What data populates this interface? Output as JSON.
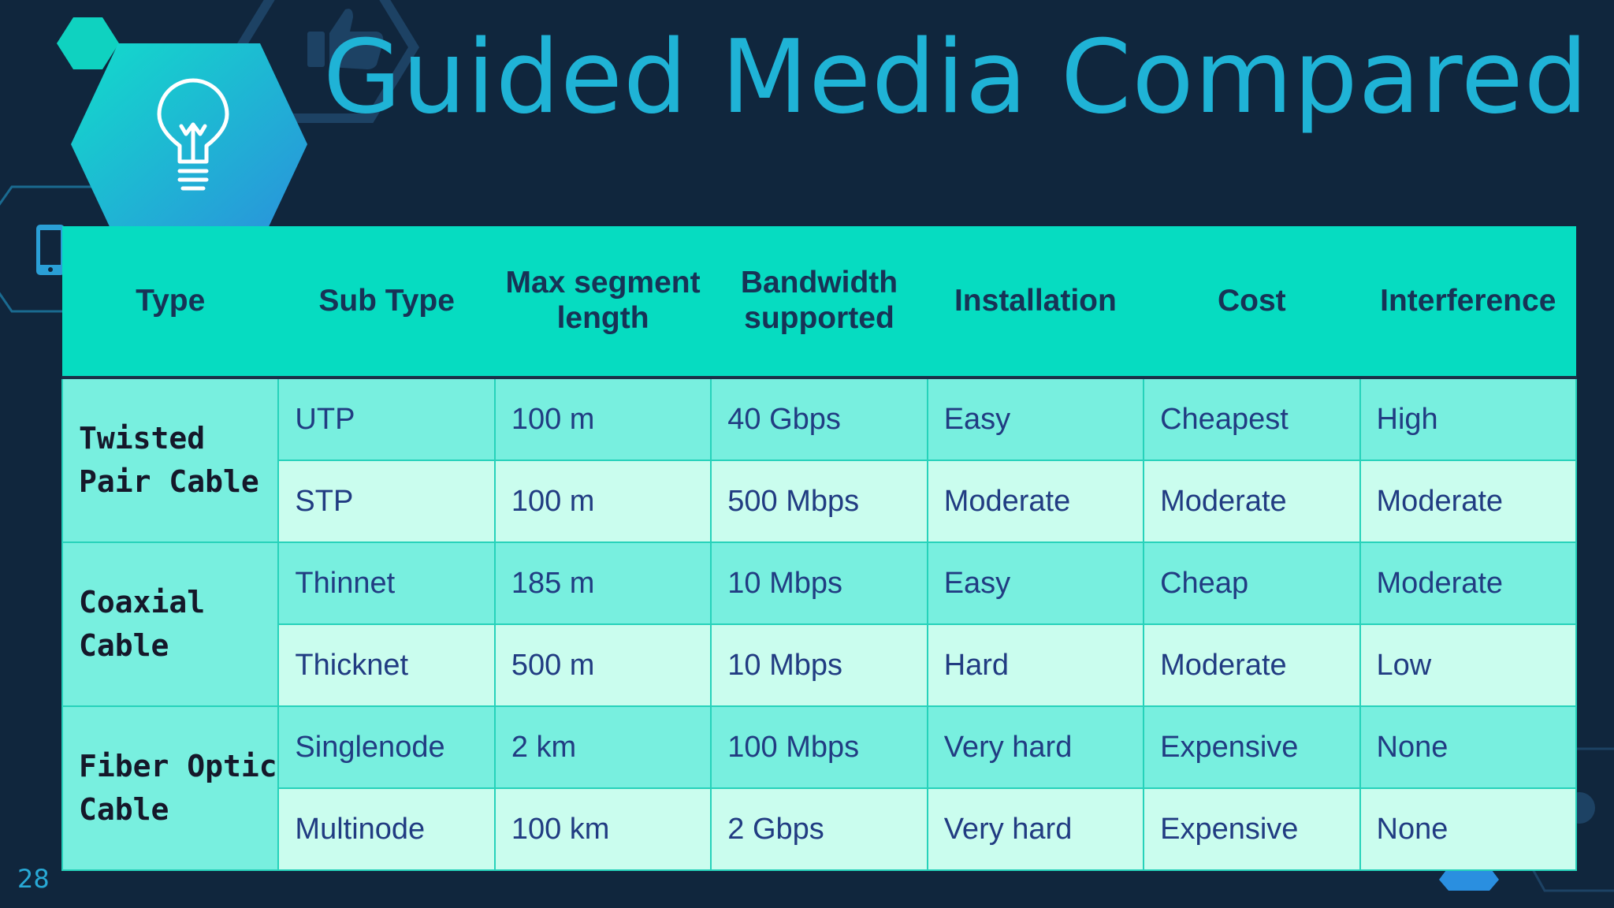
{
  "title": "Guided Media Compared",
  "slide_number": "28",
  "colors": {
    "background": "#10263d",
    "title": "#1fb3d6",
    "header_bg": "#06dcc1",
    "row_dark": "#78efdf",
    "row_light": "#cafdee",
    "cell_text": "#213c82"
  },
  "icons": [
    "lightbulb-icon",
    "thumbs-up-icon",
    "phone-icon",
    "gear-icon"
  ],
  "table": {
    "headers": [
      "Type",
      "Sub Type",
      "Max segment length",
      "Bandwidth supported",
      "Installation",
      "Cost",
      "Interference"
    ],
    "groups": [
      {
        "type": "Twisted Pair Cable",
        "rows": [
          [
            "UTP",
            "100 m",
            "40 Gbps",
            "Easy",
            "Cheapest",
            "High"
          ],
          [
            "STP",
            "100 m",
            "500 Mbps",
            "Moderate",
            "Moderate",
            "Moderate"
          ]
        ]
      },
      {
        "type": "Coaxial Cable",
        "rows": [
          [
            "Thinnet",
            "185 m",
            "10 Mbps",
            "Easy",
            "Cheap",
            "Moderate"
          ],
          [
            "Thicknet",
            "500 m",
            "10 Mbps",
            "Hard",
            "Moderate",
            "Low"
          ]
        ]
      },
      {
        "type": "Fiber Optic Cable",
        "rows": [
          [
            "Singlenode",
            "2 km",
            "100 Mbps",
            "Very hard",
            "Expensive",
            "None"
          ],
          [
            "Multinode",
            "100 km",
            "2 Gbps",
            "Very hard",
            "Expensive",
            "None"
          ]
        ]
      }
    ]
  }
}
